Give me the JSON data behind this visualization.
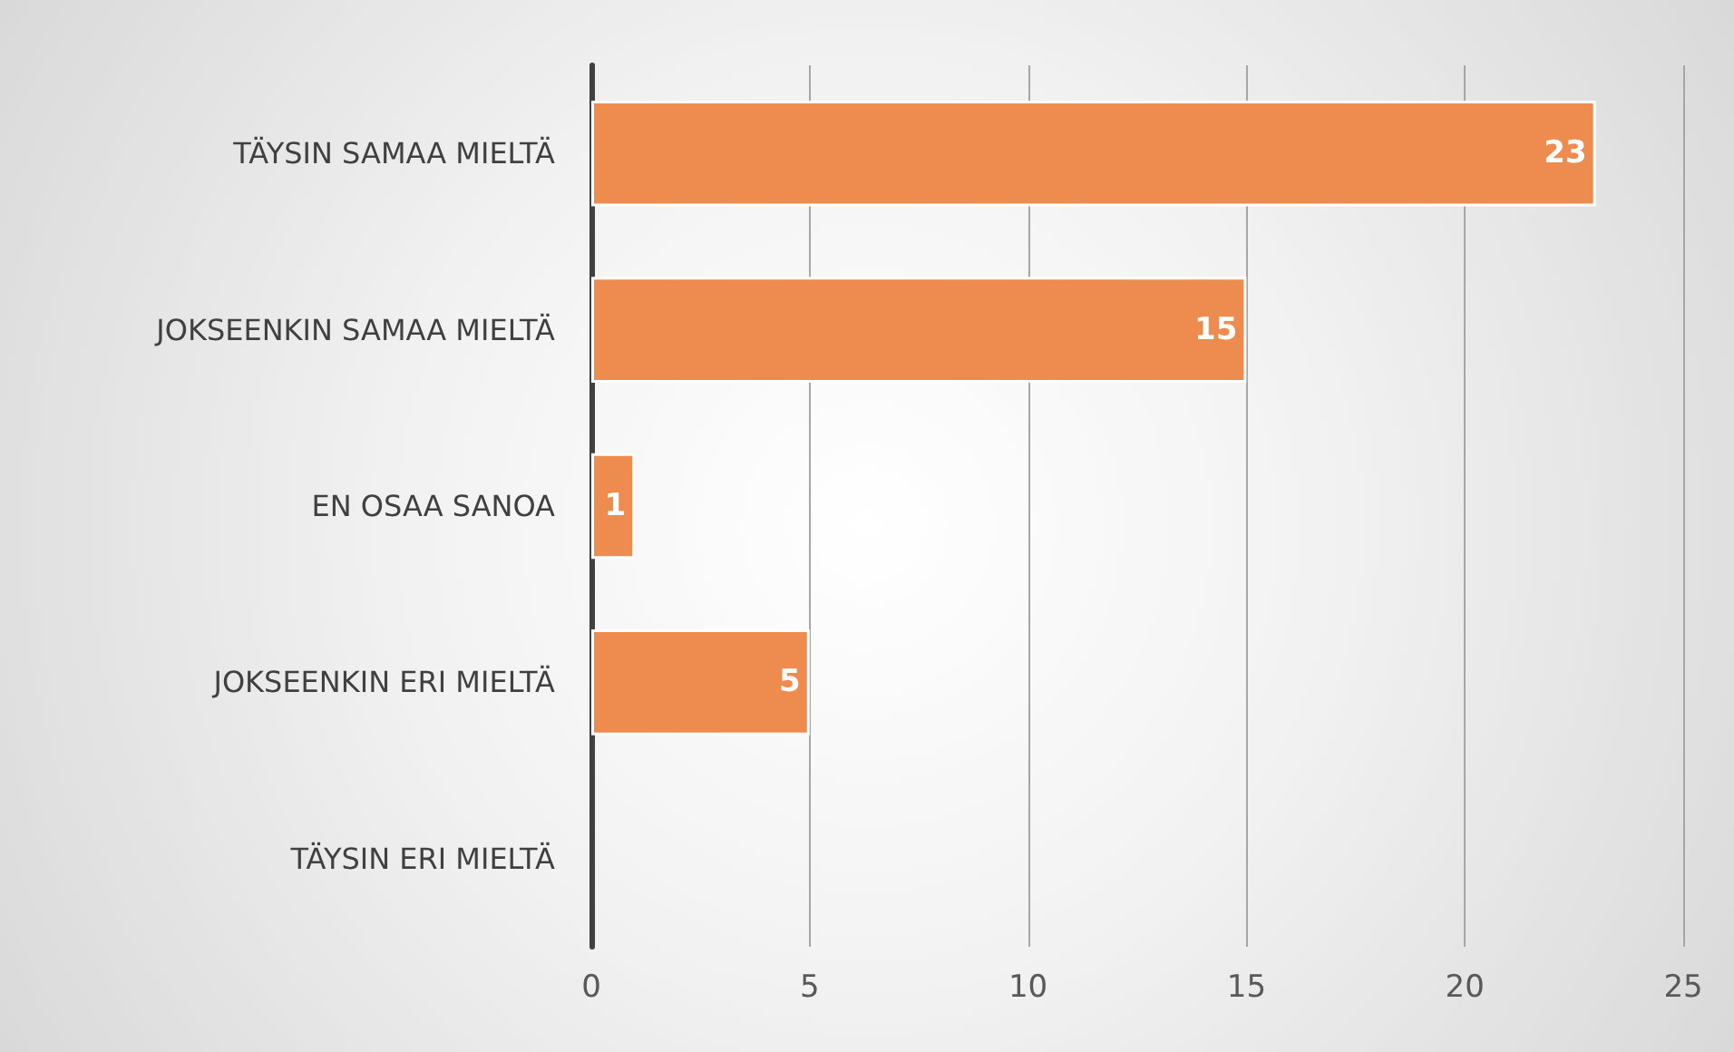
{
  "chart_data": {
    "type": "bar",
    "orientation": "horizontal",
    "categories": [
      "TÄYSIN SAMAA MIELTÄ",
      "JOKSEENKIN SAMAA MIELTÄ",
      "EN OSAA SANOA",
      "JOKSEENKIN ERI MIELTÄ",
      "TÄYSIN ERI MIELTÄ"
    ],
    "values": [
      23,
      15,
      1,
      5,
      0
    ],
    "value_labels": [
      "23",
      "15",
      "1",
      "5",
      null
    ],
    "color": "#ee8c4f",
    "xlim": [
      0,
      25
    ],
    "xticks": [
      0,
      5,
      10,
      15,
      20,
      25
    ],
    "grid": "x"
  }
}
